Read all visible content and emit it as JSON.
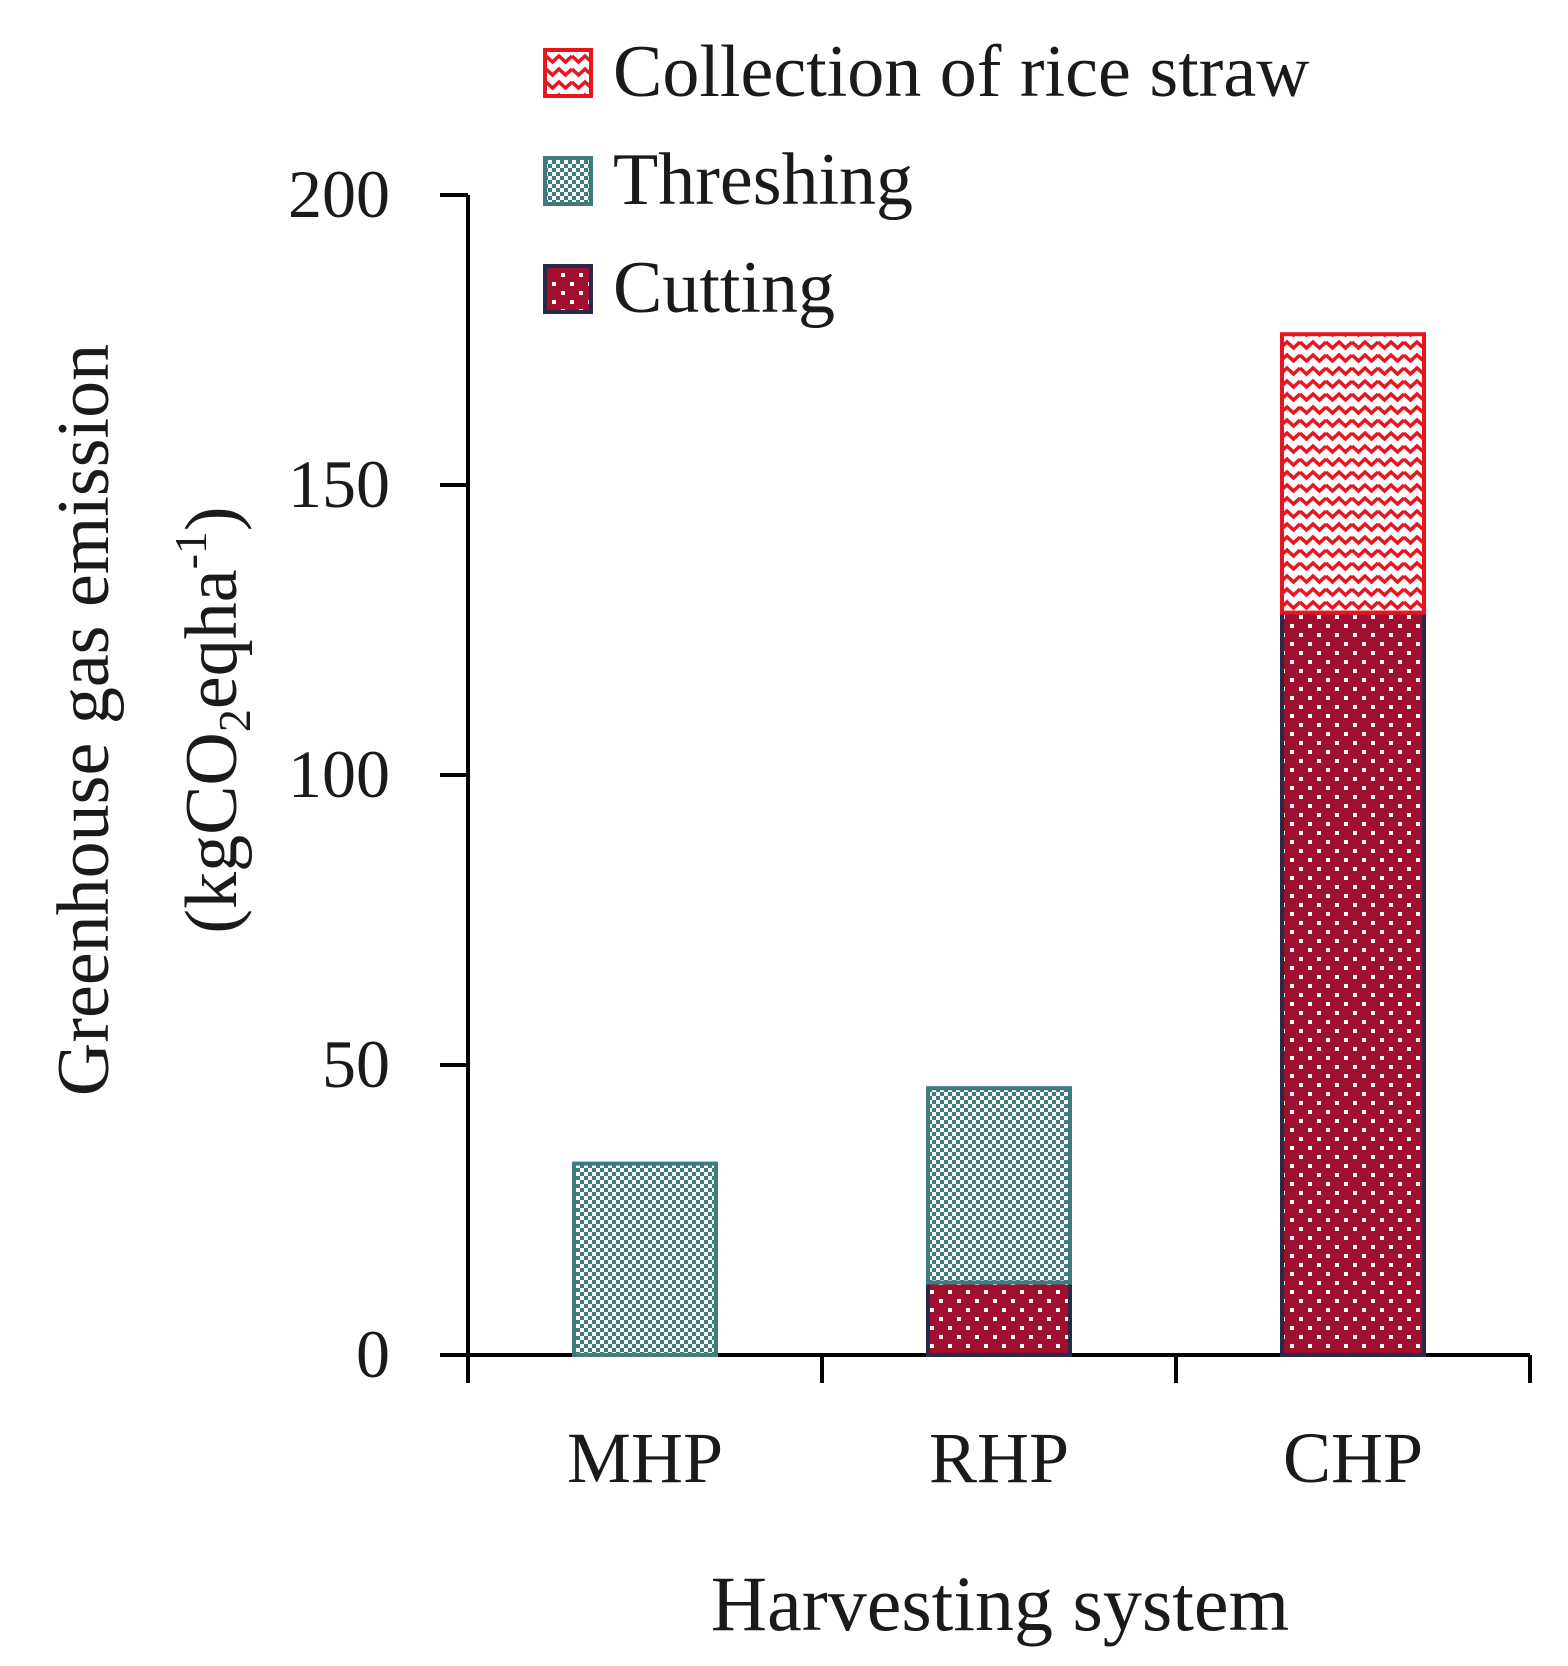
{
  "chart_data": {
    "type": "bar",
    "stacked": true,
    "categories": [
      "MHP",
      "RHP",
      "CHP"
    ],
    "series": [
      {
        "name": "Cutting",
        "values": [
          0,
          12.5,
          128
        ],
        "color": "#a0102e",
        "pattern": "dots"
      },
      {
        "name": "Threshing",
        "values": [
          33,
          33.5,
          0
        ],
        "color": "#3e7c80",
        "pattern": "checker"
      },
      {
        "name": "Collection of rice straw",
        "values": [
          0,
          0,
          48
        ],
        "color": "#e8141e",
        "pattern": "zigzag"
      }
    ],
    "legend_order": [
      "Collection of rice straw",
      "Threshing",
      "Cutting"
    ],
    "legend_position": "top",
    "xlabel": "Harvesting system",
    "ylabel": {
      "line1": "Greenhouse gas emission",
      "line2_open": "(kgCO",
      "line2_sub": "2",
      "line2_mid": "eqha",
      "line2_sup": "-1",
      "line2_close": ")"
    },
    "ylim": [
      0,
      200
    ],
    "yticks": [
      0,
      50,
      100,
      150,
      200
    ],
    "grid": false
  }
}
